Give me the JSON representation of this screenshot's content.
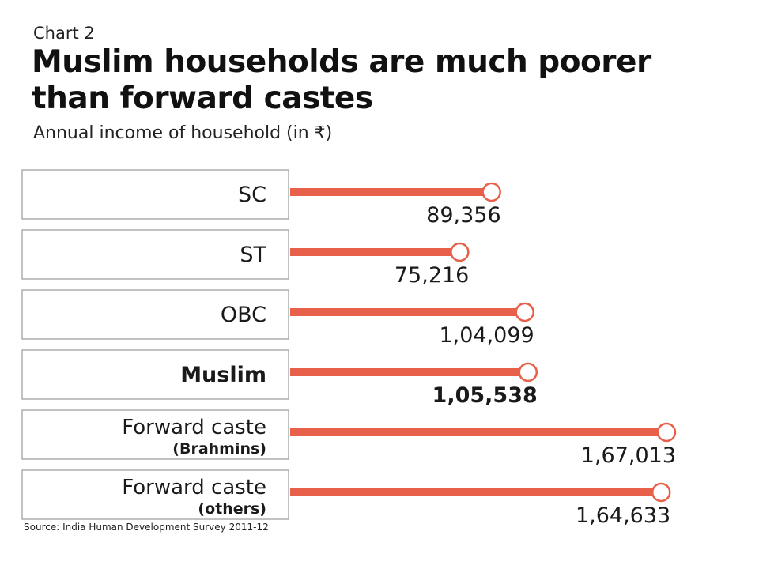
{
  "header": {
    "kicker": "Chart 2",
    "title": "Muslim households are much poorer than forward castes",
    "subtitle": "Annual income of household (in ₹)"
  },
  "footer": {
    "source": "Source: India Human Development Survey 2011-12"
  },
  "colors": {
    "bar": "#e8604a",
    "box_border": "#9a9a9a",
    "text": "#1a1a1a"
  },
  "chart_data": {
    "type": "bar",
    "orientation": "horizontal",
    "style": "lollipop",
    "categories": [
      {
        "line1": "SC",
        "line2": "",
        "bold": false
      },
      {
        "line1": "ST",
        "line2": "",
        "bold": false
      },
      {
        "line1": "OBC",
        "line2": "",
        "bold": false
      },
      {
        "line1": "Muslim",
        "line2": "",
        "bold": true
      },
      {
        "line1": "Forward caste",
        "line2": "(Brahmins)",
        "bold": false
      },
      {
        "line1": "Forward caste",
        "line2": "(others)",
        "bold": false
      }
    ],
    "values": [
      89356,
      75216,
      104099,
      105538,
      167013,
      164633
    ],
    "value_labels": [
      "89,356",
      "75,216",
      "1,04,099",
      "1,05,538",
      "1,67,013",
      "1,64,633"
    ],
    "highlight_index": 3,
    "xlim": [
      0,
      170000
    ],
    "grid": false,
    "title": "Muslim households are much poorer than forward castes",
    "subtitle": "Annual income of household (in ₹)"
  }
}
